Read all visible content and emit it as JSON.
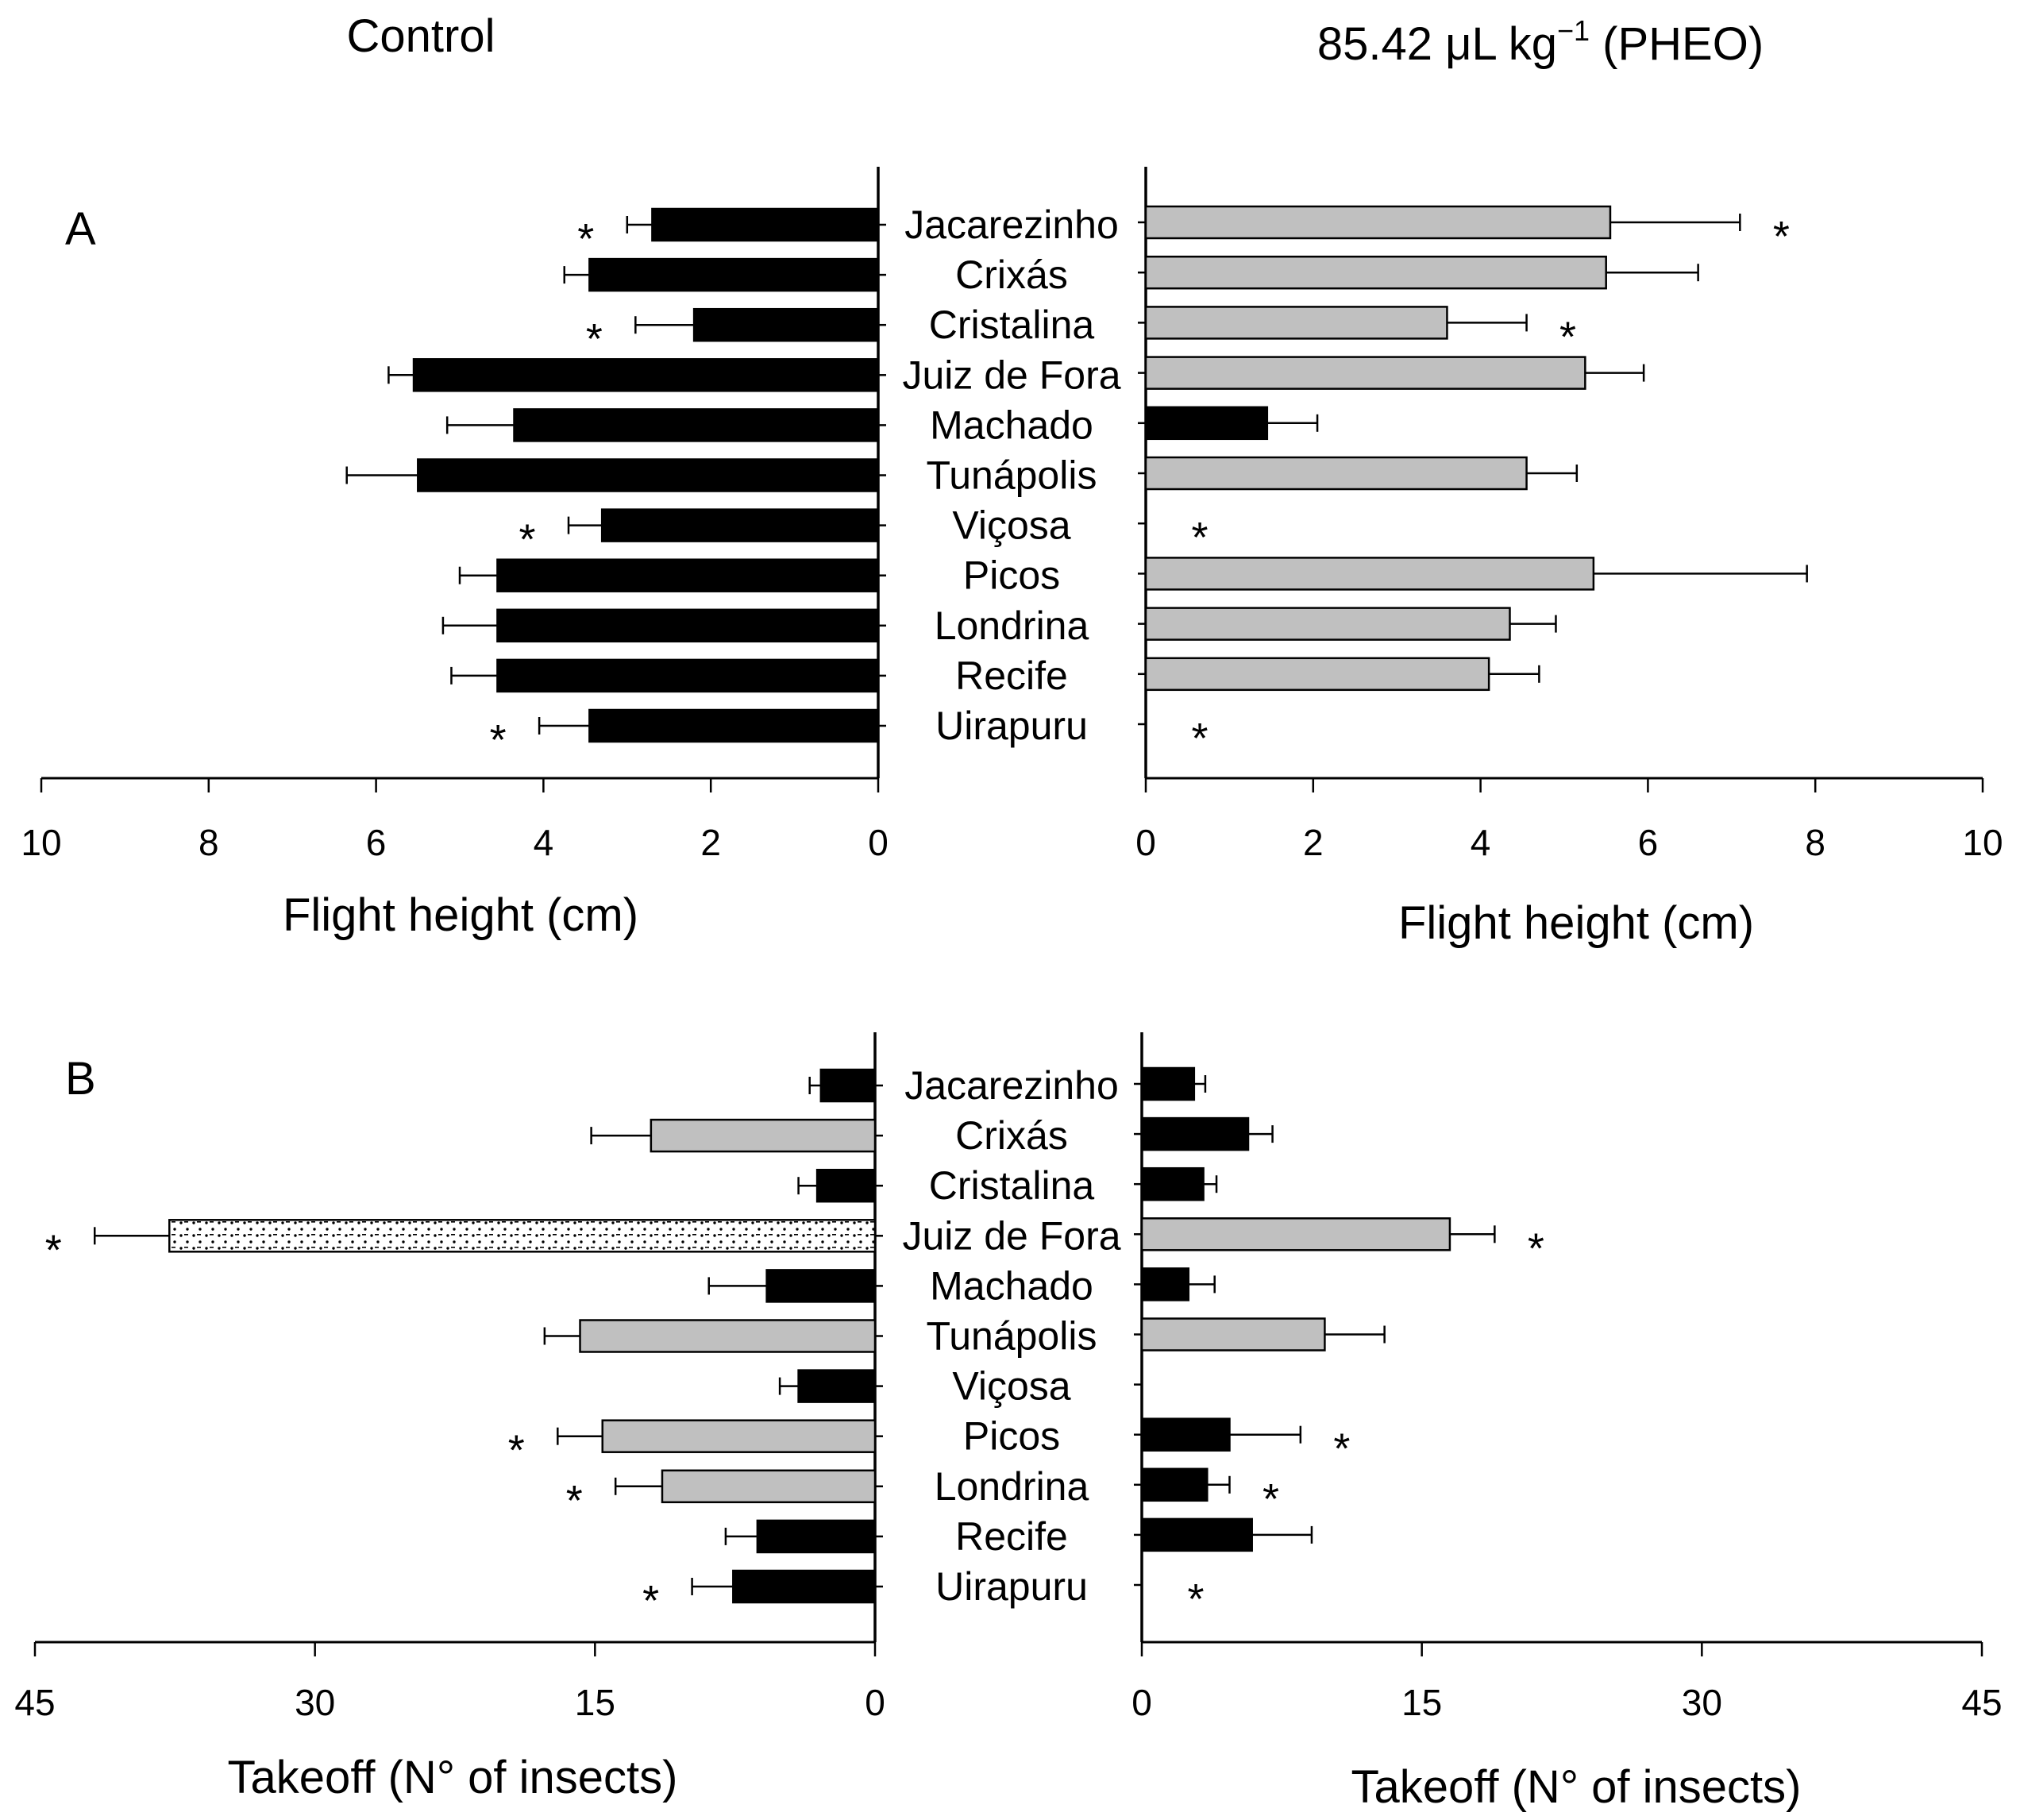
{
  "headers": {
    "control": "Control",
    "treatment_main": "85.42 μL kg",
    "treatment_sup": "−1",
    "treatment_tail": " (PHEO)"
  },
  "panel_labels": {
    "a": "A",
    "b": "B"
  },
  "chart_data": [
    {
      "type": "bar",
      "orientation": "horizontal",
      "panel": "A",
      "title": "Control",
      "xlabel": "Flight height (cm)",
      "xlim": [
        0,
        10
      ],
      "xticks": [
        "0",
        "2",
        "4",
        "6",
        "8",
        "10"
      ],
      "reversed": true,
      "categories": [
        "Jacarezinho",
        "Crixás",
        "Cristalina",
        "Juiz de Fora",
        "Machado",
        "Tunápolis",
        "Viçosa",
        "Picos",
        "Londrina",
        "Recife",
        "Uirapuru"
      ],
      "values": [
        2.7,
        3.45,
        2.2,
        5.55,
        4.35,
        5.5,
        3.3,
        4.55,
        4.55,
        4.55,
        3.45
      ],
      "errors": [
        0.3,
        0.3,
        0.7,
        0.3,
        0.8,
        0.85,
        0.4,
        0.45,
        0.65,
        0.55,
        0.6
      ],
      "fills": [
        "black",
        "black",
        "black",
        "black",
        "black",
        "black",
        "black",
        "black",
        "black",
        "black",
        "black"
      ],
      "significant": [
        true,
        false,
        true,
        false,
        false,
        false,
        true,
        false,
        false,
        false,
        true
      ]
    },
    {
      "type": "bar",
      "orientation": "horizontal",
      "panel": "A",
      "title": "85.42 μL kg−1 (PHEO)",
      "xlabel": "Flight height  (cm)",
      "xlim": [
        0,
        10
      ],
      "xticks": [
        "0",
        "2",
        "4",
        "6",
        "8",
        "10"
      ],
      "reversed": false,
      "categories": [
        "Jacarezinho",
        "Crixás",
        "Cristalina",
        "Juiz de Fora",
        "Machado",
        "Tunápolis",
        "Viçosa",
        "Picos",
        "Londrina",
        "Recife",
        "Uirapuru"
      ],
      "values": [
        5.55,
        5.5,
        3.6,
        5.25,
        1.45,
        4.55,
        0,
        5.35,
        4.35,
        4.1,
        0
      ],
      "errors": [
        1.55,
        1.1,
        0.95,
        0.7,
        0.6,
        0.6,
        0,
        2.55,
        0.55,
        0.6,
        0
      ],
      "fills": [
        "gray",
        "gray",
        "gray",
        "gray",
        "black",
        "gray",
        "none",
        "gray",
        "gray",
        "gray",
        "none"
      ],
      "significant": [
        true,
        false,
        true,
        false,
        false,
        false,
        true,
        false,
        false,
        false,
        true
      ]
    },
    {
      "type": "bar",
      "orientation": "horizontal",
      "panel": "B",
      "title": "Control",
      "xlabel": "Takeoff (N° of insects)",
      "xlim": [
        0,
        45
      ],
      "xticks": [
        "0",
        "15",
        "30",
        "45"
      ],
      "reversed": true,
      "categories": [
        "Jacarezinho",
        "Crixás",
        "Cristalina",
        "Juiz de Fora",
        "Machado",
        "Tunápolis",
        "Viçosa",
        "Picos",
        "Londrina",
        "Recife",
        "Uirapuru"
      ],
      "values": [
        2.9,
        12,
        3.1,
        37.8,
        5.8,
        15.8,
        4.1,
        14.6,
        11.4,
        6.3,
        7.6
      ],
      "errors": [
        0.6,
        3.2,
        1.0,
        4.0,
        3.1,
        1.9,
        1.0,
        2.4,
        2.5,
        1.7,
        2.2
      ],
      "fills": [
        "black",
        "gray",
        "black",
        "dotted",
        "black",
        "gray",
        "black",
        "gray",
        "gray",
        "black",
        "black"
      ],
      "significant": [
        false,
        false,
        false,
        true,
        false,
        false,
        false,
        true,
        true,
        false,
        true
      ]
    },
    {
      "type": "bar",
      "orientation": "horizontal",
      "panel": "B",
      "title": "85.42 μL kg−1 (PHEO)",
      "xlabel": "Takeoff (N° of insects)",
      "xlim": [
        0,
        45
      ],
      "xticks": [
        "0",
        "15",
        "30",
        "45"
      ],
      "reversed": false,
      "categories": [
        "Jacarezinho",
        "Crixás",
        "Cristalina",
        "Juiz de Fora",
        "Machado",
        "Tunápolis",
        "Viçosa",
        "Picos",
        "Londrina",
        "Recife",
        "Uirapuru"
      ],
      "values": [
        2.8,
        5.7,
        3.3,
        16.5,
        2.5,
        9.8,
        0,
        4.7,
        3.5,
        5.9,
        0
      ],
      "errors": [
        0.6,
        1.3,
        0.7,
        2.4,
        1.4,
        3.2,
        0,
        3.8,
        1.2,
        3.2,
        0
      ],
      "fills": [
        "black",
        "black",
        "black",
        "gray",
        "black",
        "gray",
        "none",
        "black",
        "black",
        "black",
        "none"
      ],
      "significant": [
        false,
        false,
        false,
        true,
        false,
        false,
        false,
        true,
        true,
        false,
        true
      ]
    }
  ]
}
